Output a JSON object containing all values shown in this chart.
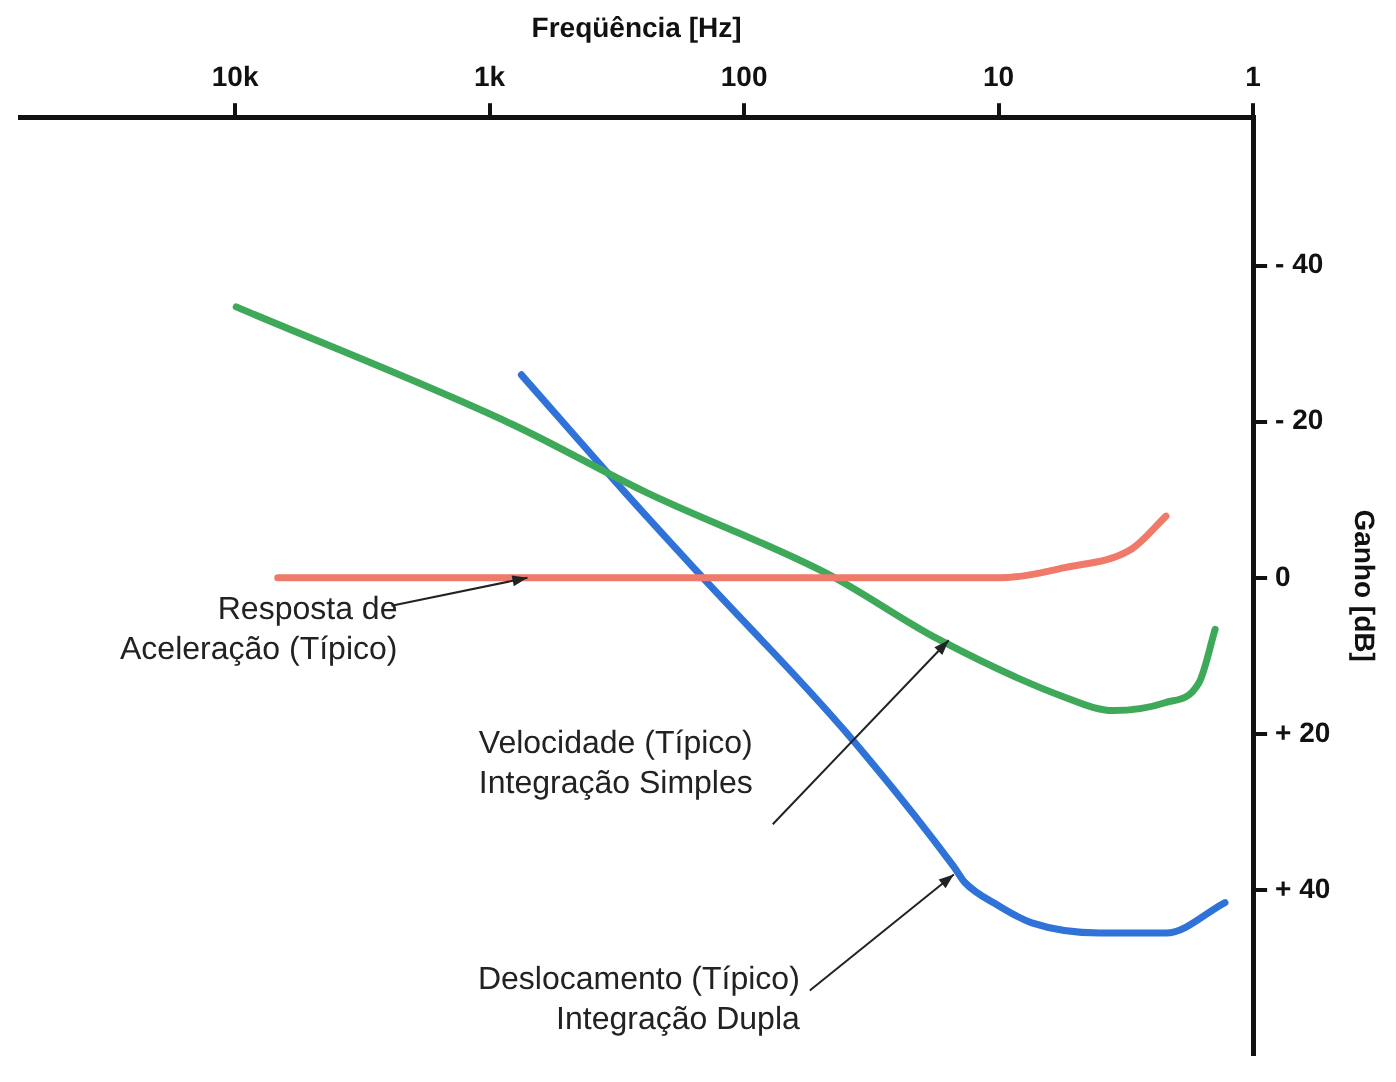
{
  "chart_data": {
    "type": "line",
    "xlabel": "Freqüência [Hz]",
    "ylabel": "Ganho [dB]",
    "log": "x",
    "xlim": [
      70000,
      1
    ],
    "ylim": [
      61,
      -59
    ],
    "xticks": [
      1,
      10,
      100,
      {
        "value": 1000,
        "label": "1k"
      },
      {
        "value": 10000,
        "label": "10k"
      }
    ],
    "yticks": [
      {
        "value": -40,
        "label": "- 40"
      },
      {
        "value": -20,
        "label": "- 20"
      },
      0,
      {
        "value": 20,
        "label": "+ 20"
      },
      {
        "value": 40,
        "label": "+ 40"
      }
    ],
    "grid": false,
    "legend": false,
    "marker": "none",
    "line_style": "solid",
    "series": [
      {
        "color": "#f07a6a",
        "x": [
          2.2,
          3.0,
          5.5,
          10,
          6800
        ],
        "values": [
          -7.9,
          -3.7,
          -1.3,
          0,
          0
        ]
      },
      {
        "color": "#3fa95a",
        "x": [
          1.41,
          1.63,
          2.22,
          3.55,
          5.5,
          17.2,
          47,
          245,
          820,
          9900
        ],
        "values": [
          6.6,
          13.4,
          16,
          17,
          15.3,
          7.9,
          -0.5,
          -11,
          -19.7,
          -34.7
        ]
      },
      {
        "color": "#2f72d8",
        "x": [
          1.29,
          2.2,
          4.0,
          7.4,
          10,
          13.6,
          15,
          40,
          150,
          295,
          750
        ],
        "values": [
          41.6,
          45.5,
          45.5,
          44.2,
          42,
          39,
          37,
          19.7,
          -0.5,
          -11,
          -26
        ]
      }
    ],
    "annotations": [
      {
        "text": "Resposta de\nAceleração (Típico)",
        "x": 710,
        "y": 0
      },
      {
        "text": "Velocidade (Típico)\nIntegração Simples",
        "x": 15.7,
        "y": 8
      },
      {
        "text": "Deslocamento (Típico)\nIntegração Dupla",
        "x": 15,
        "y": 38
      }
    ]
  }
}
